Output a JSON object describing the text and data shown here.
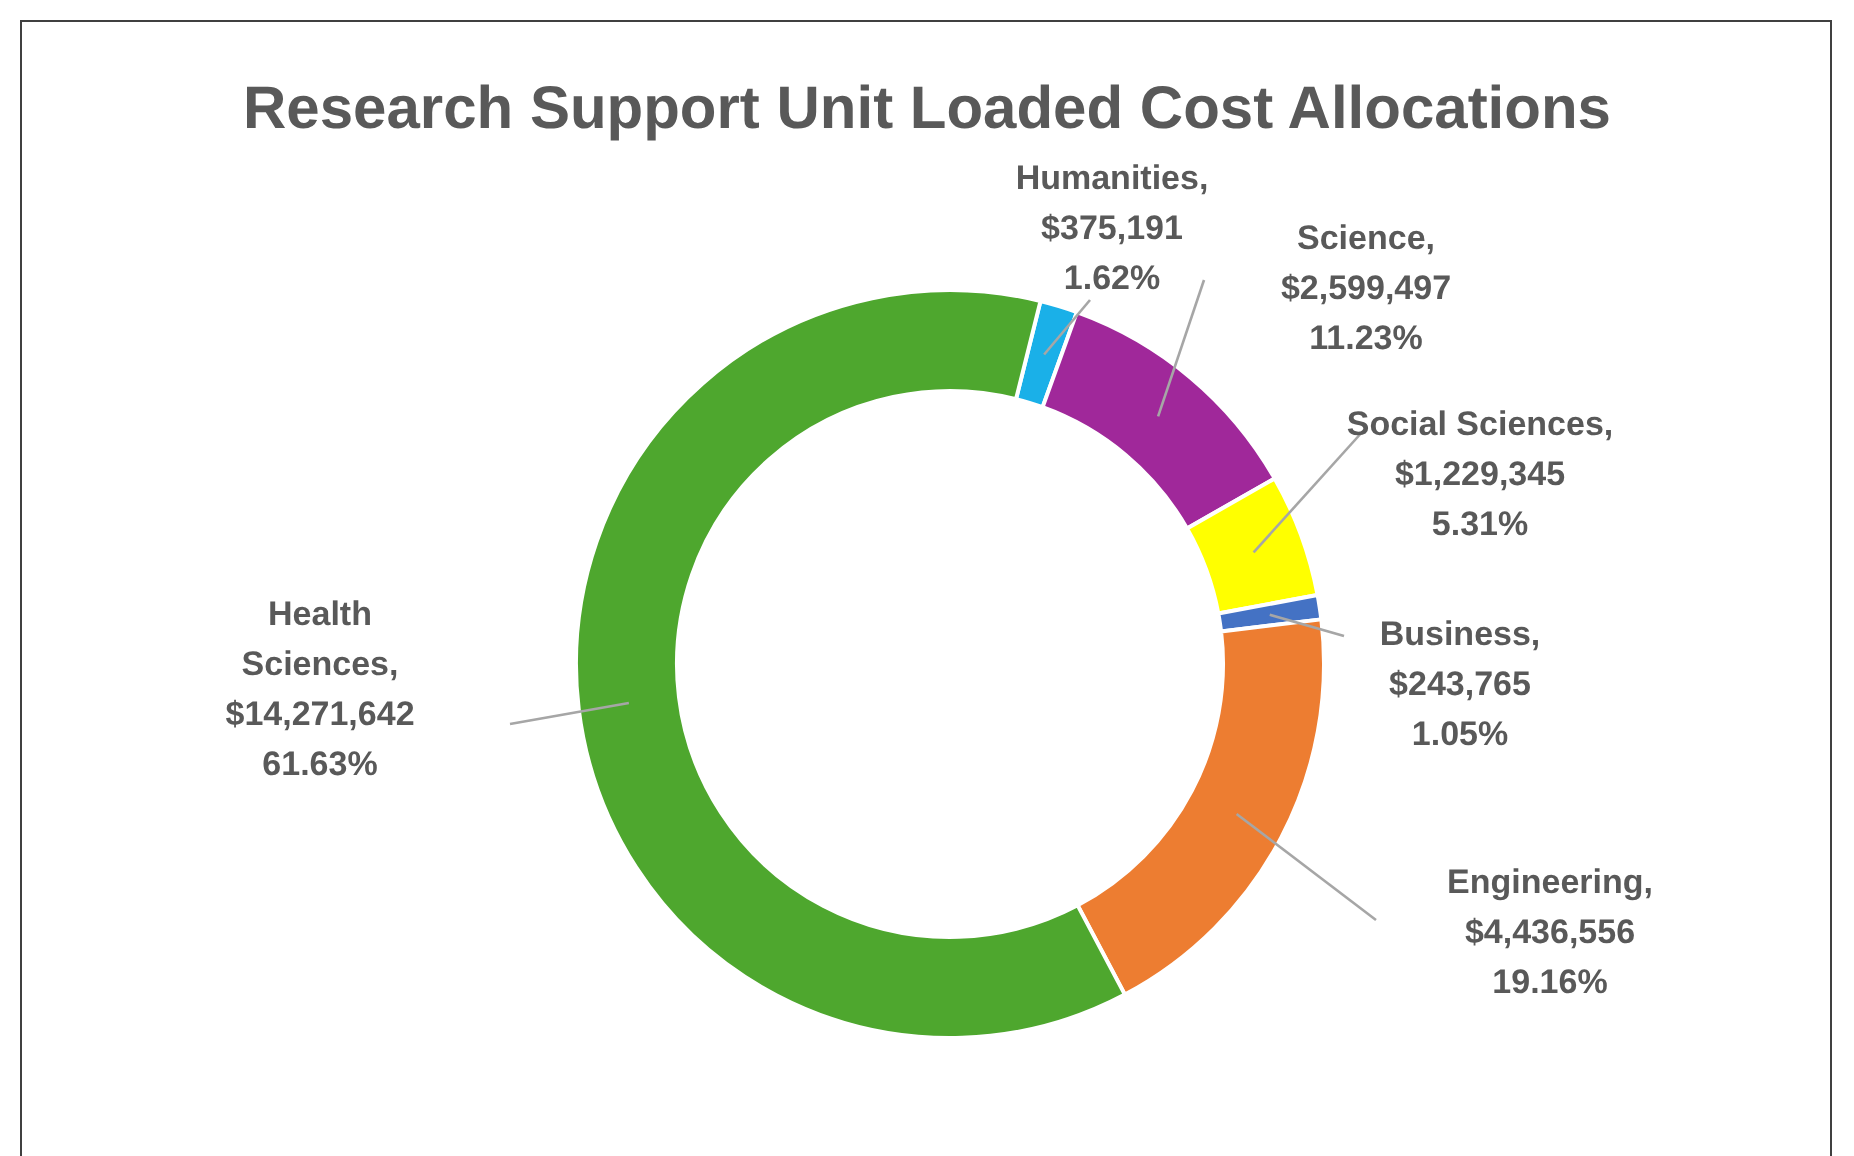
{
  "chart_data": {
    "type": "donut",
    "title": "Research Support Unit Loaded Cost Allocations",
    "categories": [
      "Humanities",
      "Science",
      "Social Sciences",
      "Business",
      "Engineering",
      "Health Sciences"
    ],
    "values": [
      375191,
      2599497,
      1229345,
      243765,
      4436556,
      14271642
    ],
    "colors": [
      "#1ab0e8",
      "#a0289a",
      "#ffff00",
      "#4472c4",
      "#ed7d31",
      "#4ea72e"
    ],
    "value_labels": [
      ",\n$375,191\n1.62%",
      ",\n$2,599,497\n11.23%",
      ",\n$1,229,345\n5.31%",
      ",\n$243,765\n1.05%",
      ",\n$4,436,556\n19.16%",
      ",\n$14,271,642\n61.63%"
    ],
    "legend": false
  }
}
